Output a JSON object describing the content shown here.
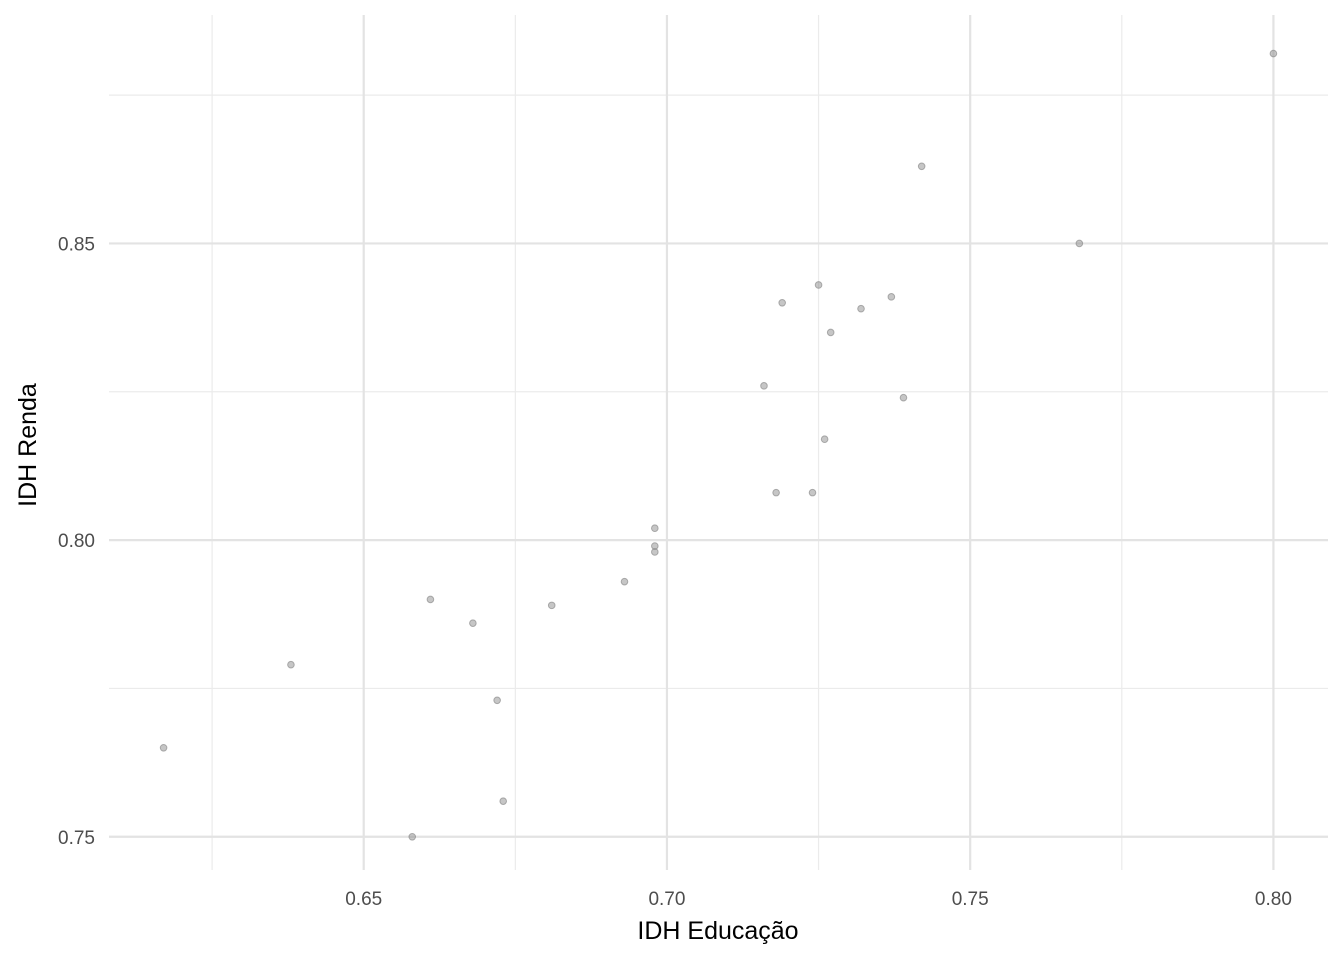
{
  "chart_data": {
    "type": "scatter",
    "x_label": "IDH Educação",
    "y_label": "IDH Renda",
    "series": [
      {
        "color": "#808080",
        "x": [
          0.8,
          0.742,
          0.768,
          0.725,
          0.719,
          0.737,
          0.732,
          0.727,
          0.716,
          0.739,
          0.726,
          0.718,
          0.724,
          0.698,
          0.698,
          0.698,
          0.693,
          0.681,
          0.661,
          0.668,
          0.638,
          0.672,
          0.617,
          0.673,
          0.658
        ],
        "values": [
          0.882,
          0.863,
          0.85,
          0.843,
          0.84,
          0.841,
          0.839,
          0.835,
          0.826,
          0.824,
          0.817,
          0.808,
          0.808,
          0.802,
          0.799,
          0.798,
          0.793,
          0.789,
          0.79,
          0.786,
          0.779,
          0.773,
          0.765,
          0.756,
          0.75
        ]
      }
    ],
    "xlim": [
      0.608,
      0.809
    ],
    "ylim": [
      0.7444,
      0.8885
    ],
    "xticks": [
      {
        "value": 0.65,
        "label": "0.65"
      },
      {
        "value": 0.7,
        "label": "0.70"
      },
      {
        "value": 0.75,
        "label": "0.75"
      },
      {
        "value": 0.8,
        "label": "0.80"
      }
    ],
    "yticks": [
      {
        "value": 0.75,
        "label": "0.75"
      },
      {
        "value": 0.8,
        "label": "0.80"
      },
      {
        "value": 0.85,
        "label": "0.85"
      }
    ],
    "xminor": [
      0.625,
      0.675,
      0.725,
      0.775
    ],
    "yminor": [
      0.775,
      0.825,
      0.875
    ],
    "grid": true
  }
}
